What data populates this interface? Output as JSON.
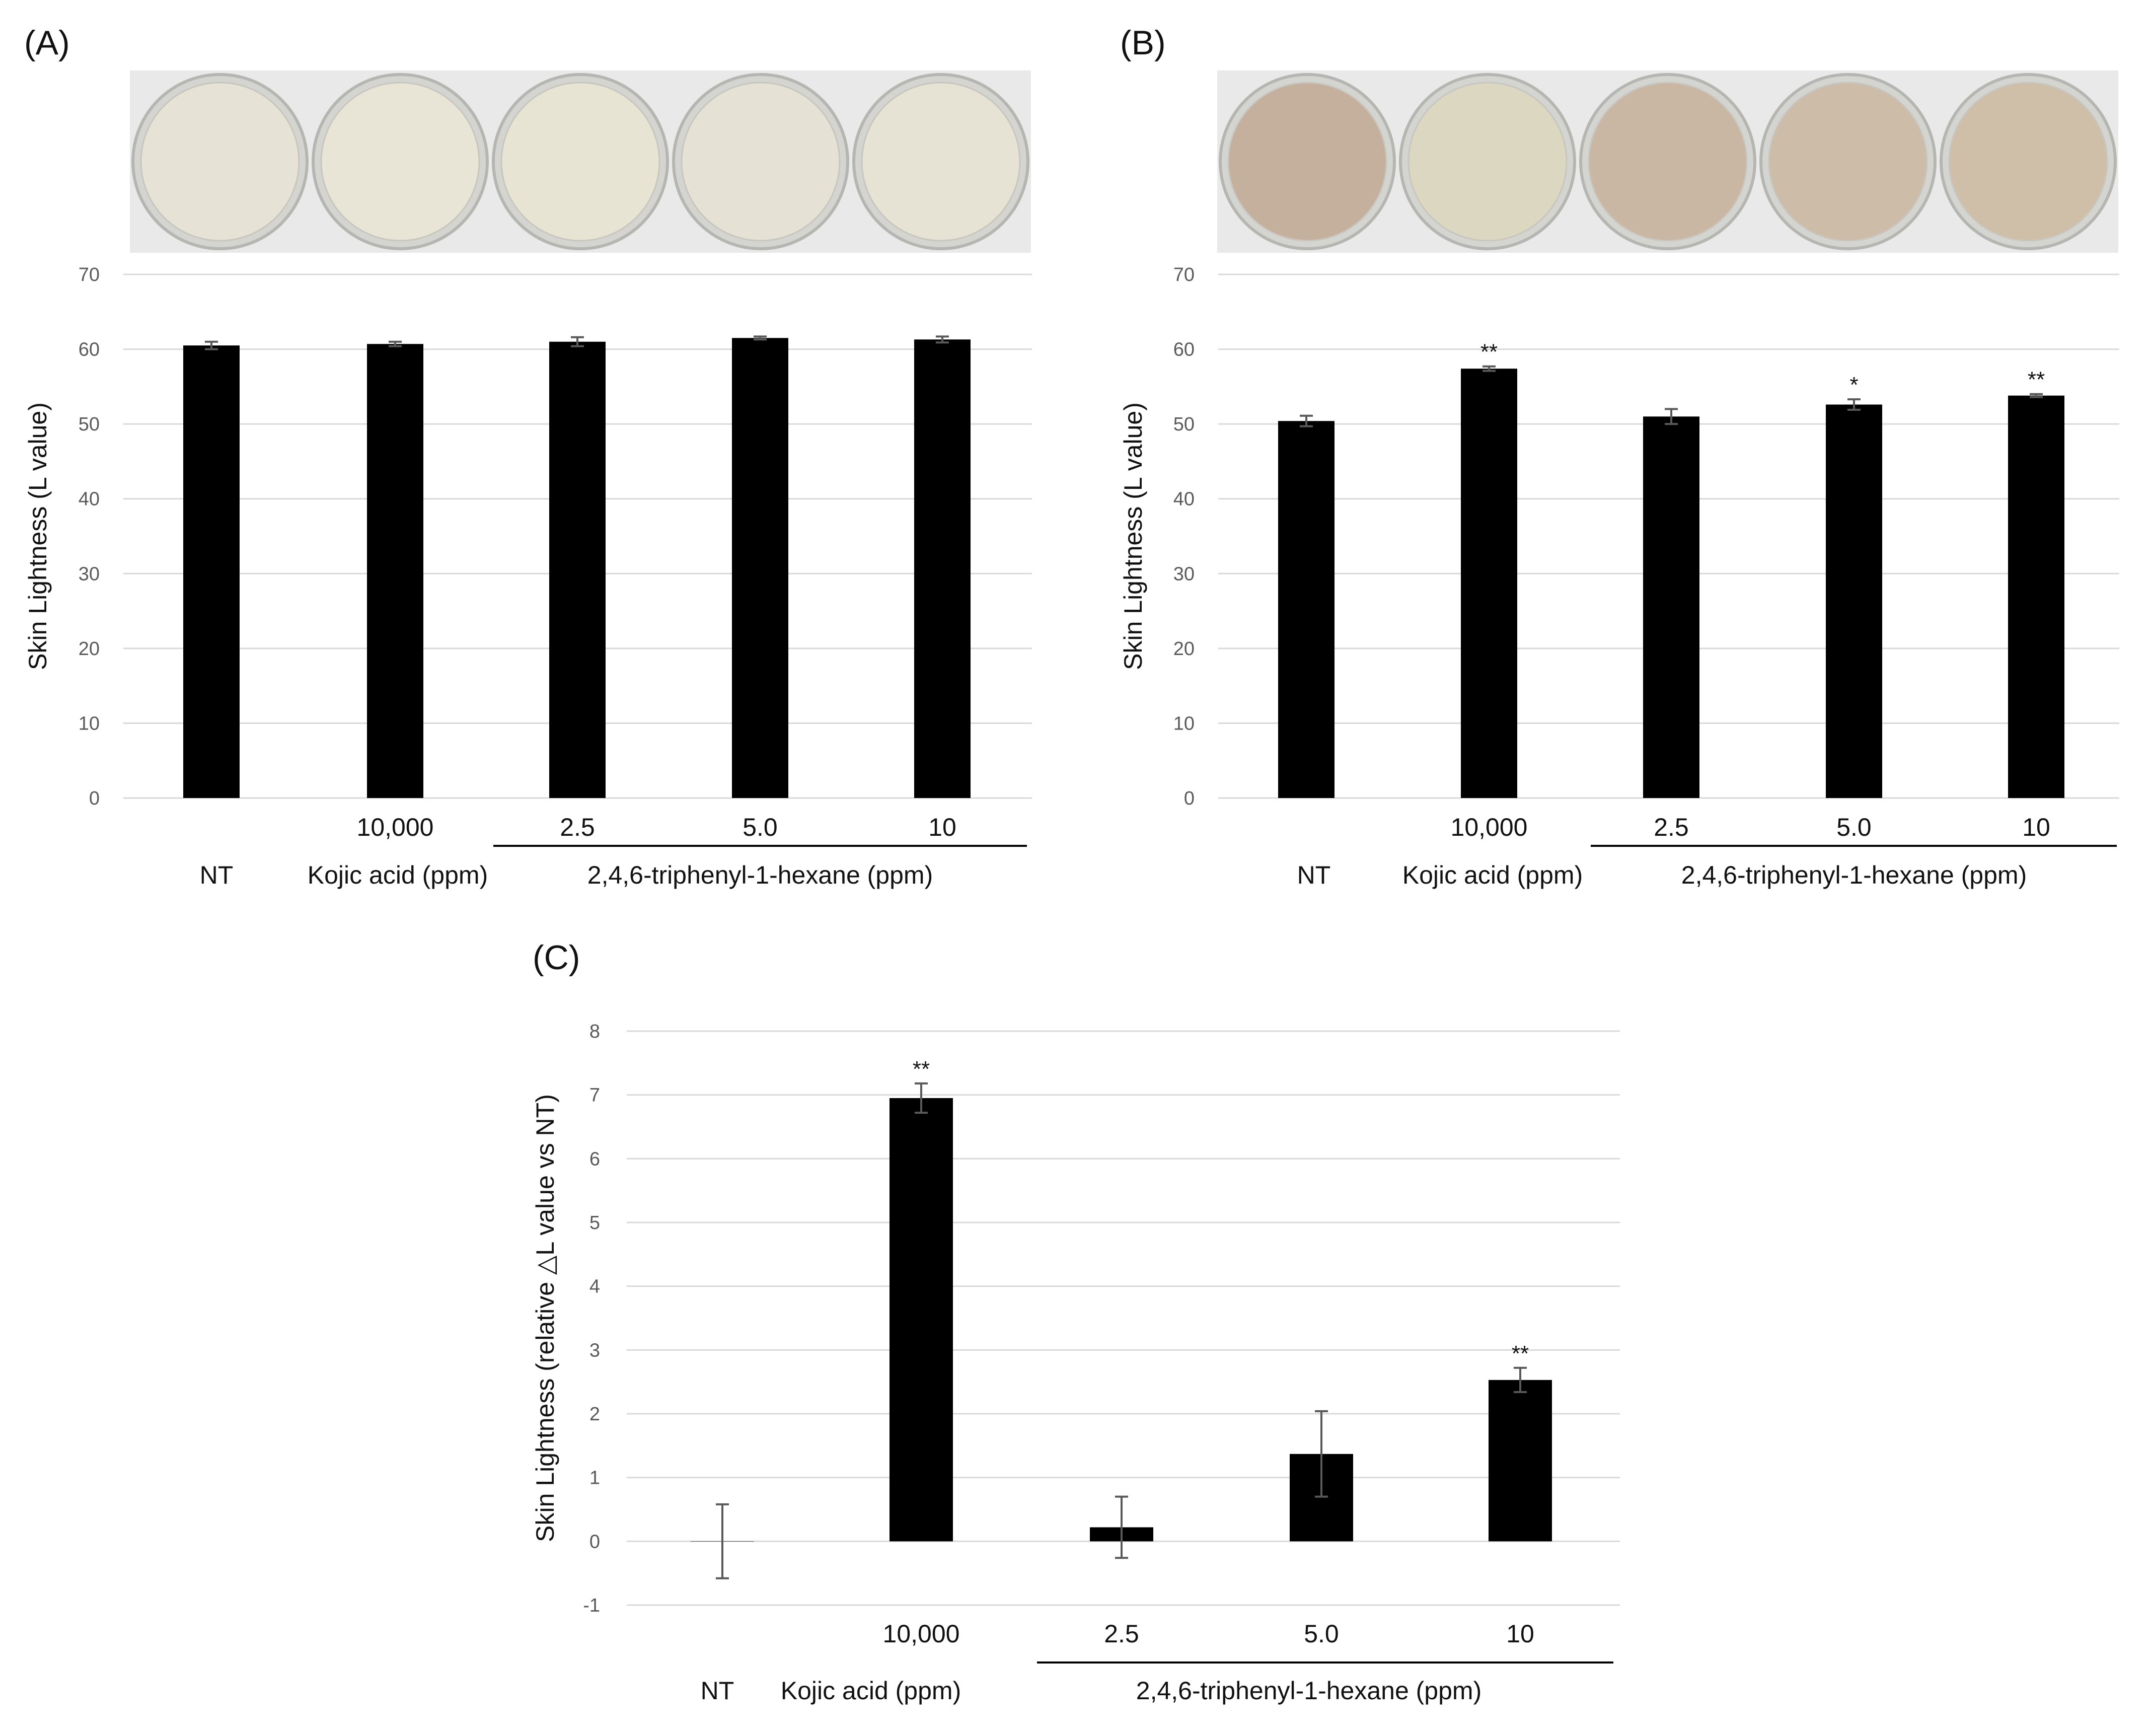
{
  "chart_data": [
    {
      "panel_label": "(A)",
      "type": "bar",
      "categories": [
        "NT",
        "Kojic acid",
        "2.5",
        "5.0",
        "10"
      ],
      "values": [
        60.5,
        60.7,
        61.0,
        61.5,
        61.3
      ],
      "errors": [
        0.5,
        0.3,
        0.6,
        0.2,
        0.4
      ],
      "significance": [
        "",
        "",
        "",
        "",
        ""
      ],
      "ylabel": "Skin Lightness (L value)",
      "ylim": [
        0,
        70
      ],
      "yticks": [
        "0",
        "10",
        "20",
        "30",
        "40",
        "50",
        "60",
        "70"
      ],
      "grid": true,
      "photo_tints": [
        "#e6e2d5",
        "#e8e5d6",
        "#e7e4d3",
        "#e5e2d5",
        "#e6e3d4"
      ],
      "xlabels": {
        "nt": "NT",
        "kojic_dose": "10,000",
        "kojic": "Kojic acid  (ppm)",
        "doses": [
          "2.5",
          "5.0",
          "10"
        ],
        "compound": "2,4,6-triphenyl-1-hexane  (ppm)"
      }
    },
    {
      "panel_label": "(B)",
      "type": "bar",
      "categories": [
        "NT",
        "Kojic acid",
        "2.5",
        "5.0",
        "10"
      ],
      "values": [
        50.4,
        57.4,
        51.0,
        52.6,
        53.8
      ],
      "errors": [
        0.7,
        0.3,
        1.0,
        0.7,
        0.2
      ],
      "significance": [
        "",
        "**",
        "",
        "*",
        "**"
      ],
      "ylabel": "Skin Lightness  (L value)",
      "ylim": [
        0,
        70
      ],
      "yticks": [
        "0",
        "10",
        "20",
        "30",
        "40",
        "50",
        "60",
        "70"
      ],
      "grid": true,
      "photo_tints": [
        "#c4b09c",
        "#dcd7c1",
        "#c9b7a3",
        "#cdbca8",
        "#cfbfa8"
      ],
      "xlabels": {
        "nt": "NT",
        "kojic_dose": "10,000",
        "kojic": "Kojic acid  (ppm)",
        "doses": [
          "2.5",
          "5.0",
          "10"
        ],
        "compound": "2,4,6-triphenyl-1-hexane  (ppm)"
      }
    },
    {
      "panel_label": "(C)",
      "type": "bar",
      "categories": [
        "NT",
        "Kojic acid",
        "2.5",
        "5.0",
        "10"
      ],
      "values": [
        0.0,
        6.95,
        0.22,
        1.37,
        2.53
      ],
      "errors": [
        0.58,
        0.23,
        0.48,
        0.67,
        0.19
      ],
      "significance": [
        "",
        "**",
        "",
        "",
        "**"
      ],
      "ylabel": "Skin Lightness (relative △L value vs NT)",
      "ylim": [
        -1,
        8
      ],
      "yticks": [
        "-1",
        "0",
        "1",
        "2",
        "3",
        "4",
        "5",
        "6",
        "7",
        "8"
      ],
      "grid": true,
      "xlabels": {
        "nt": "NT",
        "kojic_dose": "10,000",
        "kojic": "Kojic acid  (ppm)",
        "doses": [
          "2.5",
          "5.0",
          "10"
        ],
        "compound": "2,4,6-triphenyl-1-hexane  (ppm)"
      }
    }
  ]
}
